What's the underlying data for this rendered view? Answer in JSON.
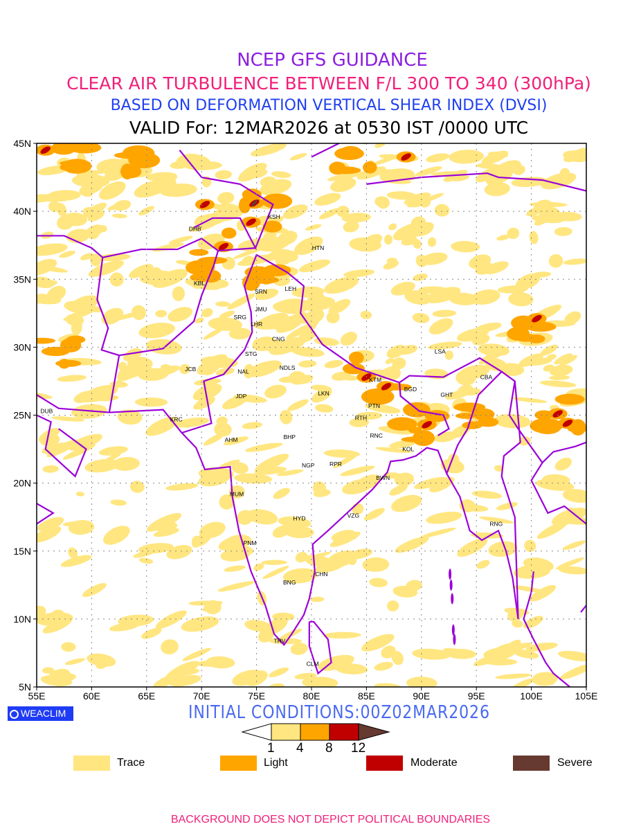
{
  "header": {
    "line1": "NCEP GFS GUIDANCE",
    "line2": "CLEAR AIR TURBULENCE BETWEEN F/L 300 TO 340 (300hPa)",
    "line3": "BASED ON DEFORMATION VERTICAL SHEAR INDEX (DVSI)",
    "line4": "VALID For: 12MAR2026 at 0530 IST /0000 UTC"
  },
  "map": {
    "lon_range": [
      55,
      105
    ],
    "lat_range": [
      5,
      45
    ],
    "lon_ticks": [
      "55E",
      "60E",
      "65E",
      "70E",
      "75E",
      "80E",
      "85E",
      "90E",
      "95E",
      "100E",
      "105E"
    ],
    "lat_ticks": [
      "5N",
      "10N",
      "15N",
      "20N",
      "25N",
      "30N",
      "35N",
      "40N",
      "45N"
    ],
    "stations": [
      {
        "name": "KSH",
        "lon": 76.6,
        "lat": 39.6
      },
      {
        "name": "DHB",
        "lon": 69.4,
        "lat": 38.7
      },
      {
        "name": "HTN",
        "lon": 80.6,
        "lat": 37.3
      },
      {
        "name": "KBL",
        "lon": 69.8,
        "lat": 34.7
      },
      {
        "name": "SRN",
        "lon": 75.4,
        "lat": 34.1
      },
      {
        "name": "LEH",
        "lon": 78.1,
        "lat": 34.3
      },
      {
        "name": "JMU",
        "lon": 75.4,
        "lat": 32.8
      },
      {
        "name": "SRG",
        "lon": 73.5,
        "lat": 32.2
      },
      {
        "name": "LHR",
        "lon": 75.0,
        "lat": 31.7
      },
      {
        "name": "CNG",
        "lon": 77.0,
        "lat": 30.6
      },
      {
        "name": "STG",
        "lon": 74.5,
        "lat": 29.5
      },
      {
        "name": "NDLS",
        "lon": 77.8,
        "lat": 28.5
      },
      {
        "name": "JCB",
        "lon": 69.0,
        "lat": 28.4
      },
      {
        "name": "NAL",
        "lon": 73.8,
        "lat": 28.2
      },
      {
        "name": "LSA",
        "lon": 91.7,
        "lat": 29.7
      },
      {
        "name": "KTM",
        "lon": 85.8,
        "lat": 27.6
      },
      {
        "name": "CBA",
        "lon": 95.9,
        "lat": 27.8
      },
      {
        "name": "BGD",
        "lon": 89.0,
        "lat": 26.9
      },
      {
        "name": "GHT",
        "lon": 92.3,
        "lat": 26.5
      },
      {
        "name": "JDP",
        "lon": 73.6,
        "lat": 26.4
      },
      {
        "name": "LKN",
        "lon": 81.1,
        "lat": 26.6
      },
      {
        "name": "PTN",
        "lon": 85.7,
        "lat": 25.7
      },
      {
        "name": "DUB",
        "lon": 55.9,
        "lat": 25.3
      },
      {
        "name": "RTH",
        "lon": 84.5,
        "lat": 24.8
      },
      {
        "name": "KRC",
        "lon": 67.7,
        "lat": 24.7
      },
      {
        "name": "BHP",
        "lon": 78.0,
        "lat": 23.4
      },
      {
        "name": "AHM",
        "lon": 72.7,
        "lat": 23.2
      },
      {
        "name": "RNC",
        "lon": 85.9,
        "lat": 23.5
      },
      {
        "name": "KOL",
        "lon": 88.8,
        "lat": 22.5
      },
      {
        "name": "NGP",
        "lon": 79.7,
        "lat": 21.3
      },
      {
        "name": "RPR",
        "lon": 82.2,
        "lat": 21.4
      },
      {
        "name": "BWN",
        "lon": 86.5,
        "lat": 20.4
      },
      {
        "name": "MUM",
        "lon": 73.2,
        "lat": 19.2
      },
      {
        "name": "HYD",
        "lon": 78.9,
        "lat": 17.4
      },
      {
        "name": "VZG",
        "lon": 83.8,
        "lat": 17.6
      },
      {
        "name": "RNG",
        "lon": 96.8,
        "lat": 17.0
      },
      {
        "name": "PNM",
        "lon": 74.4,
        "lat": 15.6
      },
      {
        "name": "CHN",
        "lon": 80.9,
        "lat": 13.3
      },
      {
        "name": "BNG",
        "lon": 78.0,
        "lat": 12.7
      },
      {
        "name": "TRV",
        "lon": 77.1,
        "lat": 8.4
      },
      {
        "name": "CLM",
        "lon": 80.1,
        "lat": 6.7
      }
    ],
    "hotspots": [
      {
        "lon": 55.8,
        "lat": 44.5,
        "level": "moderate"
      },
      {
        "lon": 70.3,
        "lat": 40.5,
        "level": "moderate"
      },
      {
        "lon": 74.8,
        "lat": 40.6,
        "level": "severe"
      },
      {
        "lon": 74.5,
        "lat": 39.2,
        "level": "moderate"
      },
      {
        "lon": 72.0,
        "lat": 37.4,
        "level": "moderate"
      },
      {
        "lon": 85.0,
        "lat": 27.8,
        "level": "moderate"
      },
      {
        "lon": 86.8,
        "lat": 27.1,
        "level": "moderate"
      },
      {
        "lon": 90.5,
        "lat": 24.3,
        "level": "moderate"
      },
      {
        "lon": 102.4,
        "lat": 25.1,
        "level": "moderate"
      },
      {
        "lon": 103.3,
        "lat": 24.4,
        "level": "moderate"
      },
      {
        "lon": 100.5,
        "lat": 32.1,
        "level": "moderate"
      },
      {
        "lon": 88.6,
        "lat": 44.0,
        "level": "moderate"
      }
    ],
    "light_areas": [
      {
        "lon": 57,
        "lat": 30,
        "r": 2
      },
      {
        "lon": 74.5,
        "lat": 40,
        "r": 2.5
      },
      {
        "lon": 76,
        "lat": 35.5,
        "r": 1.8
      },
      {
        "lon": 70,
        "lat": 36,
        "r": 1.5
      },
      {
        "lon": 86,
        "lat": 27.5,
        "r": 2.5
      },
      {
        "lon": 90,
        "lat": 24.5,
        "r": 2
      },
      {
        "lon": 102.5,
        "lat": 25,
        "r": 2
      },
      {
        "lon": 100,
        "lat": 31,
        "r": 1.8
      },
      {
        "lon": 84,
        "lat": 44,
        "r": 2
      },
      {
        "lon": 58,
        "lat": 44,
        "r": 1.5
      },
      {
        "lon": 64,
        "lat": 43.5,
        "r": 1.3
      },
      {
        "lon": 95,
        "lat": 25,
        "r": 1.2
      }
    ]
  },
  "legend": {
    "colorbar_ticks": [
      "1",
      "4",
      "8",
      "12"
    ],
    "items": [
      {
        "label": "Trace",
        "color": "#ffe680"
      },
      {
        "label": "Light",
        "color": "#ffa500"
      },
      {
        "label": "Moderate",
        "color": "#c00000"
      },
      {
        "label": "Severe",
        "color": "#663a30"
      }
    ]
  },
  "footer": {
    "logo": "WEACLIM",
    "initial_conditions": "INITIAL CONDITIONS:00Z02MAR2026",
    "disclaimer": "BACKGROUND DOES NOT DEPICT POLITICAL BOUNDARIES"
  },
  "colors": {
    "boundary": "#9b00d8",
    "title1": "#8a1fe0",
    "title2": "#f0207a",
    "title3": "#2040f0"
  }
}
